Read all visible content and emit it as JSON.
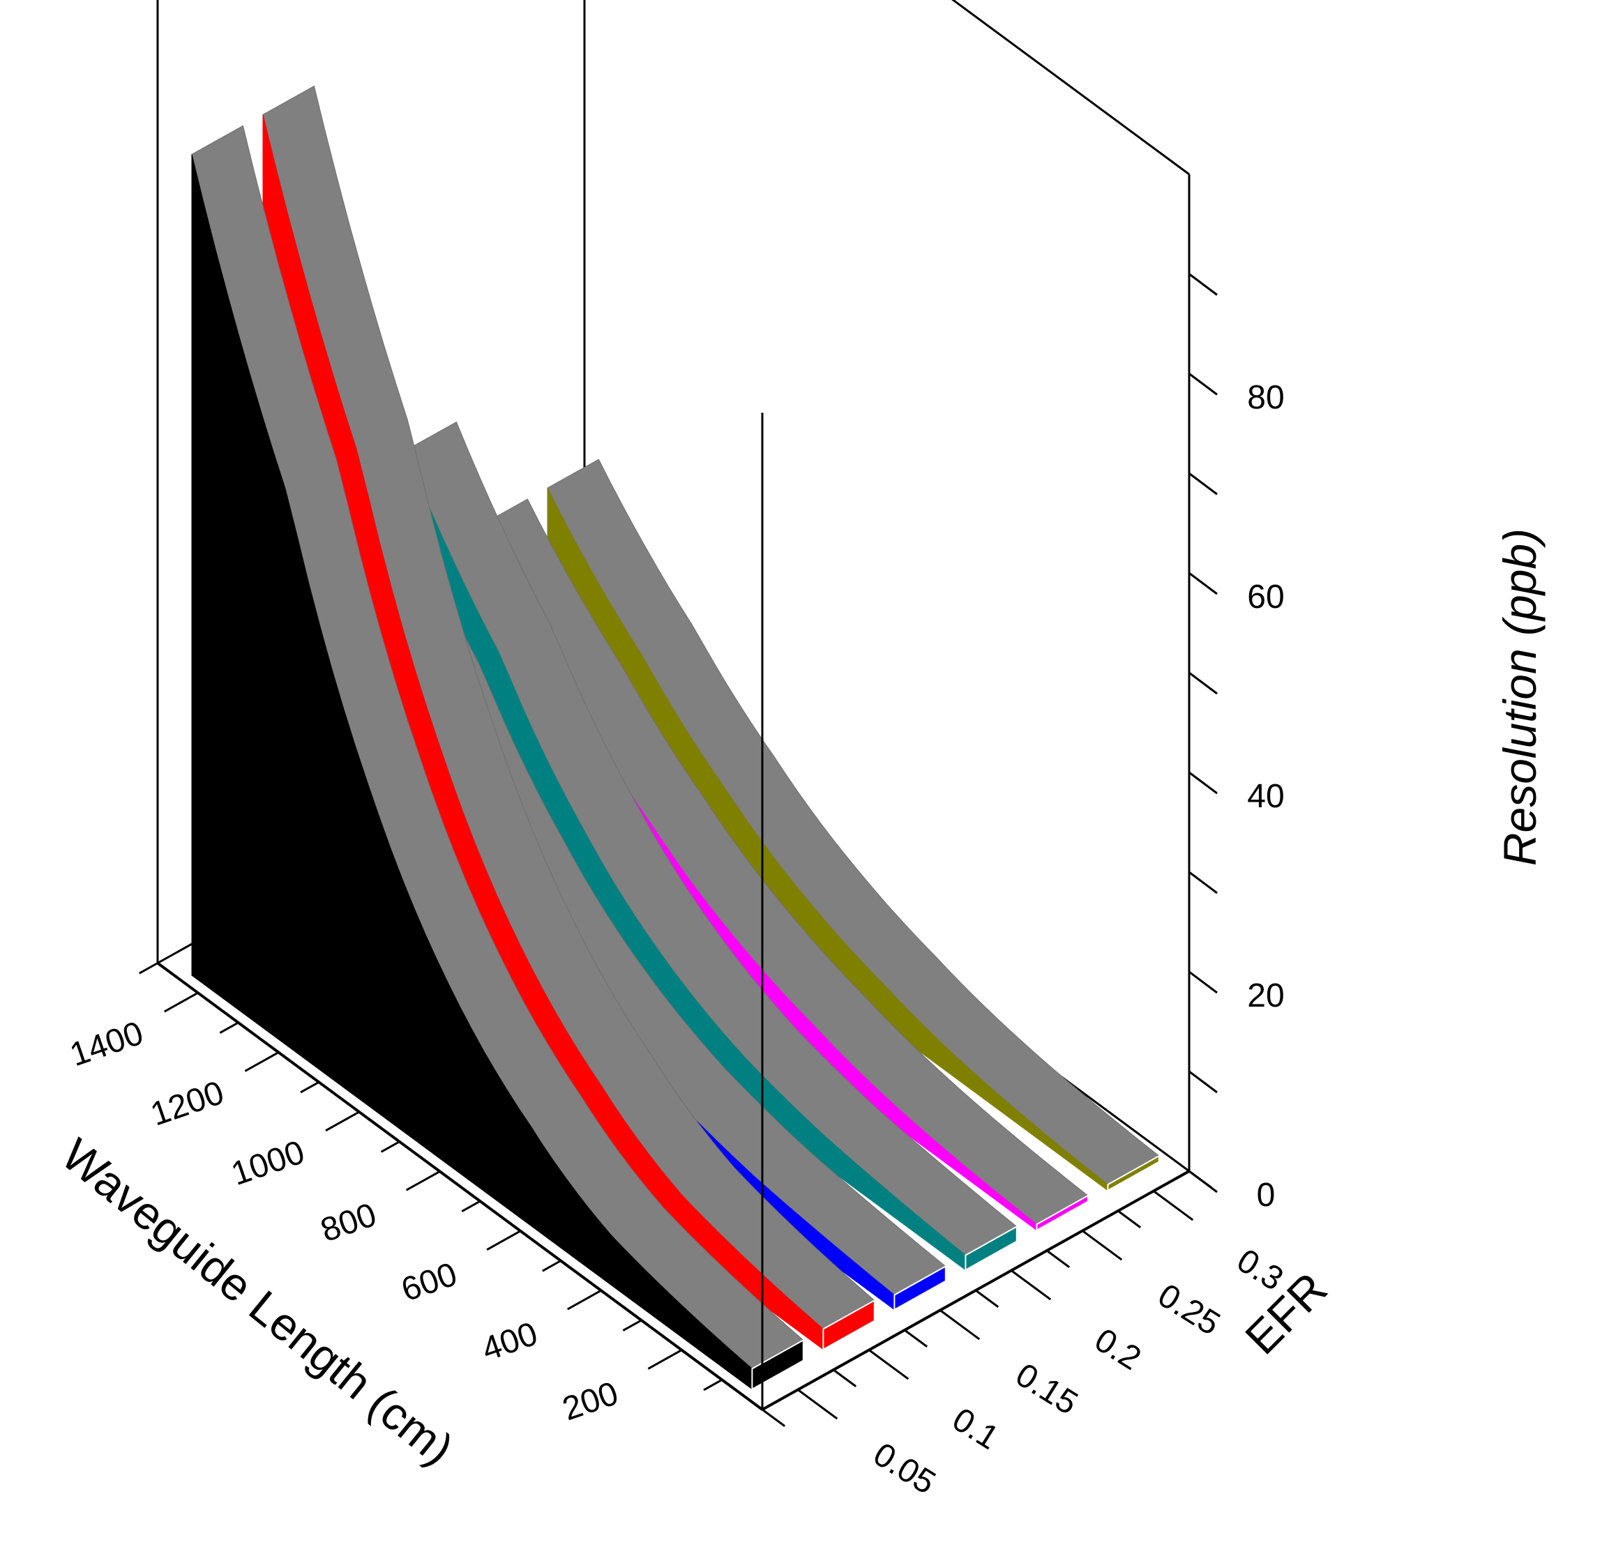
{
  "chart_data": {
    "type": "3d-ribbon",
    "title": "",
    "xlabel": "Waveguide Length (cm)",
    "ylabel": "EFR",
    "zlabel": "Resolution (ppb)",
    "xticks": [
      200,
      400,
      600,
      800,
      1000,
      1200,
      1400
    ],
    "yticks": [
      0.05,
      0.1,
      0.15,
      0.2,
      0.25,
      0.3
    ],
    "zticks": [
      0,
      20,
      40,
      60,
      80
    ],
    "xlim": [
      0,
      1500
    ],
    "ylim": [
      0.025,
      0.325
    ],
    "zlim": [
      0,
      100
    ],
    "grid": false,
    "series": [
      {
        "efr": 0.05,
        "color": "#000000",
        "x": [
          200,
          400,
          600,
          800,
          1000,
          1200,
          1400
        ],
        "values": [
          3,
          5,
          10,
          18,
          32,
          55,
          77
        ]
      },
      {
        "efr": 0.1,
        "color": "#ff0000",
        "x": [
          200,
          400,
          600,
          800,
          1000,
          1200,
          1400
        ],
        "values": [
          3,
          5,
          10,
          18,
          32,
          55,
          77
        ]
      },
      {
        "efr": 0.15,
        "color": "#0000ff",
        "x": [
          200,
          400,
          600,
          800,
          1000,
          1200,
          1400
        ],
        "values": [
          2,
          3,
          5,
          9,
          16,
          27,
          38
        ]
      },
      {
        "efr": 0.2,
        "color": "#008080",
        "x": [
          200,
          400,
          600,
          800,
          1000,
          1200,
          1400
        ],
        "values": [
          2,
          3,
          5,
          9,
          16,
          27,
          38
        ]
      },
      {
        "efr": 0.25,
        "color": "#ff00ff",
        "x": [
          200,
          400,
          600,
          800,
          1000,
          1200,
          1400
        ],
        "values": [
          1,
          2,
          4,
          7,
          12,
          19,
          27
        ]
      },
      {
        "efr": 0.3,
        "color": "#808000",
        "x": [
          200,
          400,
          600,
          800,
          1000,
          1200,
          1400
        ],
        "values": [
          1,
          2,
          4,
          7,
          12,
          19,
          27
        ]
      }
    ]
  }
}
